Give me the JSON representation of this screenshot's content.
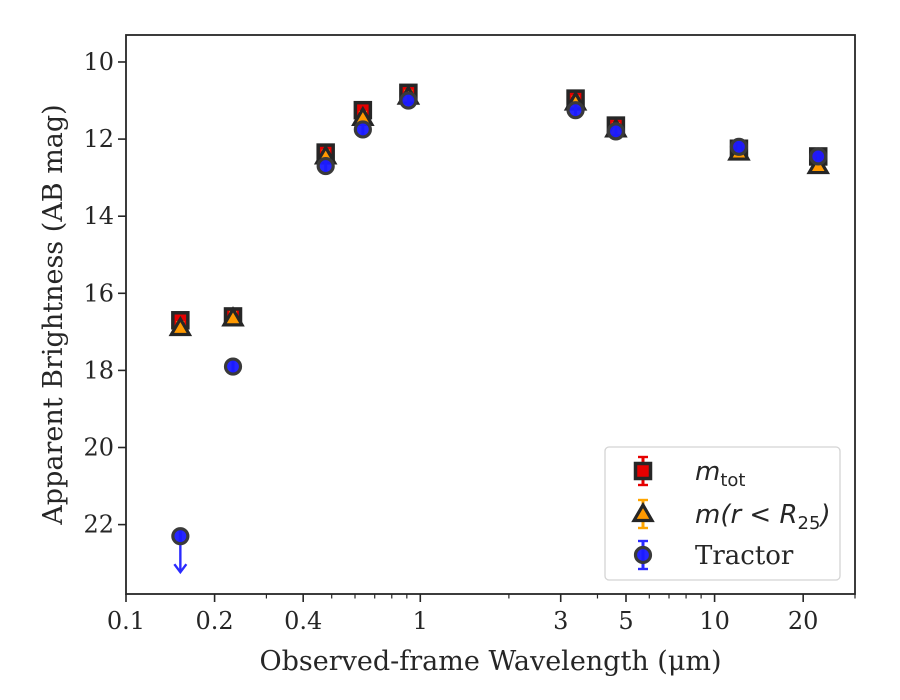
{
  "chart_data": {
    "type": "scatter",
    "xlabel": "Observed-frame Wavelength (μm)",
    "ylabel": "Apparent Brightness (AB mag)",
    "x_scale": "log",
    "xlim": [
      0.1,
      30
    ],
    "ylim": [
      23.8,
      9.3
    ],
    "y_inverted": true,
    "x_ticks": [
      0.1,
      0.2,
      0.4,
      1,
      3,
      5,
      10,
      20
    ],
    "x_tick_labels": [
      "0.1",
      "0.2",
      "0.4",
      "1",
      "3",
      "5",
      "10",
      "20"
    ],
    "y_ticks": [
      10,
      12,
      14,
      16,
      18,
      20,
      22
    ],
    "y_tick_labels": [
      "10",
      "12",
      "14",
      "16",
      "18",
      "20",
      "22"
    ],
    "grid": false,
    "legend_position": "lower-right",
    "series": [
      {
        "name": "m_tot",
        "legend_label": "mtot",
        "marker": "square",
        "color": "#e60000",
        "errcolor": "#e60000",
        "x": [
          0.153,
          0.231,
          0.477,
          0.638,
          0.911,
          3.37,
          4.62,
          12.1,
          22.5
        ],
        "y": [
          16.7,
          16.6,
          12.35,
          11.25,
          10.8,
          10.95,
          11.65,
          12.25,
          12.45
        ]
      },
      {
        "name": "m(r < R25)",
        "legend_label": "m(r < R25)",
        "marker": "triangle",
        "color": "#ff9900",
        "errcolor": "#ffa500",
        "x": [
          0.153,
          0.231,
          0.477,
          0.638,
          0.911,
          3.37,
          4.62,
          12.1,
          22.5
        ],
        "y": [
          16.9,
          16.65,
          12.45,
          11.45,
          10.9,
          11.05,
          11.75,
          12.35,
          12.7
        ]
      },
      {
        "name": "Tractor",
        "legend_label": "Tractor",
        "marker": "circle",
        "color": "#1a1aff",
        "errcolor": "#2a2aff",
        "x": [
          0.153,
          0.231,
          0.477,
          0.638,
          0.911,
          3.37,
          4.62,
          12.1,
          22.5
        ],
        "y": [
          22.3,
          17.9,
          12.7,
          11.75,
          11.0,
          11.25,
          11.8,
          12.2,
          12.45
        ],
        "upper_limit": [
          true,
          false,
          false,
          false,
          false,
          false,
          false,
          false,
          false
        ]
      }
    ]
  }
}
